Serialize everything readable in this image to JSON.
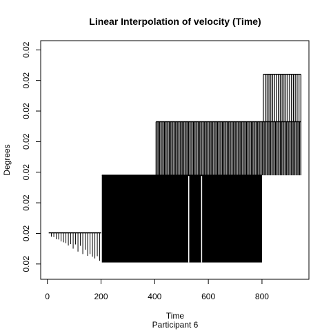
{
  "chart_data": {
    "type": "line",
    "title": "Linear Interpolation of velocity (Time)",
    "xlabel": "Time",
    "ylabel": "Degrees",
    "subtitle": "Participant  6",
    "xlim": [
      -25,
      975
    ],
    "ylim": [
      0.5,
      8.3
    ],
    "x_ticks": [
      0,
      200,
      400,
      600,
      800
    ],
    "y_ticks": [
      {
        "value": 1,
        "label": "0.02"
      },
      {
        "value": 2,
        "label": "0.02"
      },
      {
        "value": 3,
        "label": "0.02"
      },
      {
        "value": 4,
        "label": "0.02"
      },
      {
        "value": 5,
        "label": "0.02"
      },
      {
        "value": 6,
        "label": "0.02"
      },
      {
        "value": 7,
        "label": "0.02"
      },
      {
        "value": 8,
        "label": "0.02"
      }
    ],
    "segments": [
      {
        "x_start": 5,
        "x_end": 200,
        "y_top": 2.02,
        "y_bottom": 1.05,
        "spike_step": 9,
        "style": "sparse"
      },
      {
        "x_start": 203,
        "x_end": 800,
        "y_top": 3.9,
        "y_bottom": 1.05,
        "gaps": [
          527,
          575
        ],
        "style": "dense"
      },
      {
        "x_start": 405,
        "x_end": 945,
        "y_top": 5.65,
        "y_bottom": 3.9,
        "spike_step": 4.5,
        "style": "medium"
      },
      {
        "x_start": 805,
        "x_end": 945,
        "y_top": 7.2,
        "y_bottom": 5.65,
        "spike_step": 7,
        "style": "medium"
      }
    ]
  }
}
